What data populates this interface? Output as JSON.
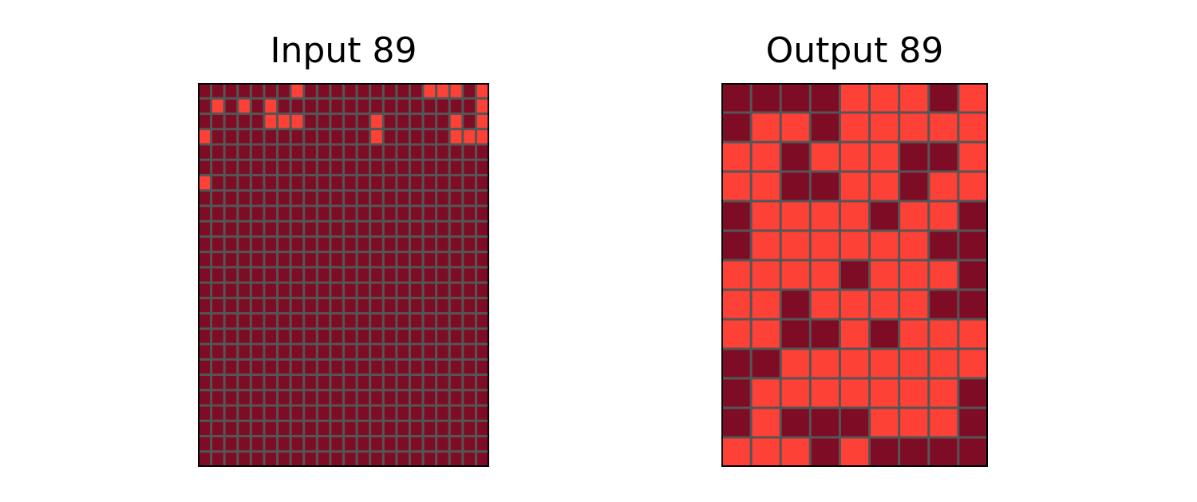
{
  "colors": {
    "dark": "#7f0c25",
    "light": "#fe4136",
    "gridline": "#555555",
    "frame": "#000000",
    "background": "#ffffff"
  },
  "panels": [
    {
      "id": "input",
      "title": "Input 89",
      "rows": [
        "0000000100000000011101",
        "0101010000000000000001",
        "0000011100000100000101",
        "1000000000000100000111",
        "0000000000000000000000",
        "0000000000000000000000",
        "1000000000000000000000",
        "0000000000000000000000",
        "0000000000000000000000",
        "0000000000000000000000",
        "0000000000000000000000",
        "0000000000000000000000",
        "0000000000000000000000",
        "0000000000000000000000",
        "0000000000000000000000",
        "0000000000000000000000",
        "0000000000000000000000",
        "0000000000000000000000",
        "0000000000000000000000",
        "0000000000000000000000",
        "0000000000000000000000",
        "0000000000000000000000",
        "0000000000000000000000",
        "0000000000000000000000",
        "0000000000000000000000"
      ]
    },
    {
      "id": "output",
      "title": "Output 89",
      "rows": [
        "000011101",
        "011011111",
        "110111001",
        "110011011",
        "011110110",
        "011111100",
        "111101110",
        "110111100",
        "110010111",
        "001111111",
        "011111110",
        "010001110",
        "111010000"
      ]
    }
  ]
}
